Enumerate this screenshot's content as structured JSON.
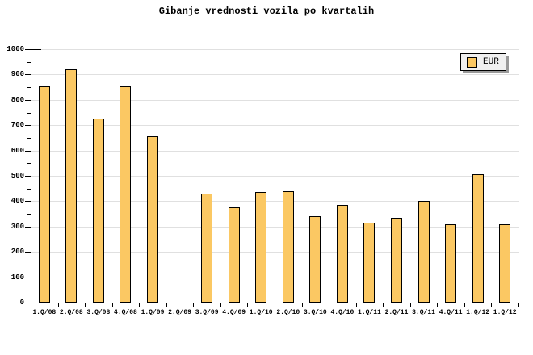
{
  "title": "Gibanje vrednosti vozila po kvartalih",
  "legend": {
    "label": "EUR"
  },
  "colors": {
    "background": "#FFFFFF",
    "text": "#000000",
    "axis": "#000000",
    "gridline": "#E0E0E0",
    "bar_fill": "#FBC863",
    "bar_border": "#000000",
    "legend_bg": "#F0F0F0",
    "legend_border": "#000000",
    "legend_shadow": "#999999"
  },
  "chart_data": {
    "type": "bar",
    "title": "Gibanje vrednosti vozila po kvartalih",
    "categories": [
      "1.Q/08",
      "2.Q/08",
      "3.Q/08",
      "4.Q/08",
      "1.Q/09",
      "2.Q/09",
      "3.Q/09",
      "4.Q/09",
      "1.Q/10",
      "2.Q/10",
      "3.Q/10",
      "4.Q/10",
      "1.Q/11",
      "2.Q/11",
      "3.Q/11",
      "4.Q/11",
      "1.Q/12",
      "1.Q/12"
    ],
    "series": [
      {
        "name": "EUR",
        "values": [
          855,
          920,
          725,
          855,
          655,
          null,
          430,
          375,
          435,
          440,
          340,
          385,
          315,
          335,
          400,
          310,
          505,
          310
        ]
      }
    ],
    "xlabel": "",
    "ylabel": "",
    "ylim": [
      0,
      1000
    ],
    "yticks": [
      0,
      100,
      200,
      300,
      400,
      500,
      600,
      700,
      800,
      900,
      1000
    ],
    "yminor_step": 50,
    "grid": true,
    "legend_position": "top-right"
  }
}
